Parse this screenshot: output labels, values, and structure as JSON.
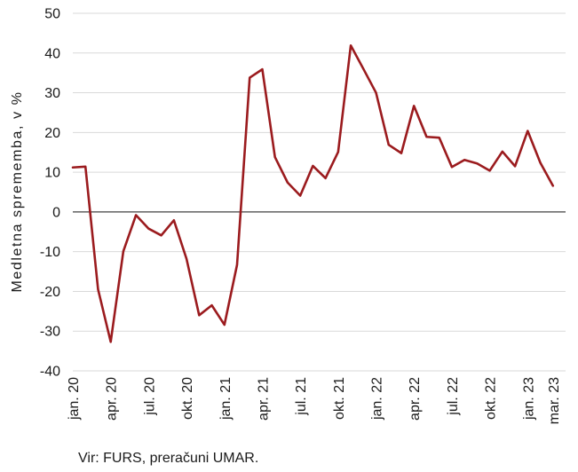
{
  "chart_data": {
    "type": "line",
    "ylabel": "Medletna sprememba, v %",
    "ylim": [
      -40,
      50
    ],
    "yticks": [
      -40,
      -30,
      -20,
      -10,
      0,
      10,
      20,
      30,
      40,
      50
    ],
    "xlim": [
      "2020-01",
      "2023-04"
    ],
    "xticks": [
      {
        "x": "2020-01",
        "label": "jan. 20"
      },
      {
        "x": "2020-04",
        "label": "apr. 20"
      },
      {
        "x": "2020-07",
        "label": "jul. 20"
      },
      {
        "x": "2020-10",
        "label": "okt. 20"
      },
      {
        "x": "2021-01",
        "label": "jan. 21"
      },
      {
        "x": "2021-04",
        "label": "apr. 21"
      },
      {
        "x": "2021-07",
        "label": "jul. 21"
      },
      {
        "x": "2021-10",
        "label": "okt. 21"
      },
      {
        "x": "2022-01",
        "label": "jan. 22"
      },
      {
        "x": "2022-04",
        "label": "apr. 22"
      },
      {
        "x": "2022-07",
        "label": "jul. 22"
      },
      {
        "x": "2022-10",
        "label": "okt. 22"
      },
      {
        "x": "2023-01",
        "label": "jan. 23"
      },
      {
        "x": "2023-03",
        "label": "mar. 23"
      }
    ],
    "grid": "horizontal",
    "grid_color": "#d9d9d9",
    "reference_line": 0,
    "reference_line_color": "#404040",
    "legend": "none",
    "x": [
      "2020-01",
      "2020-02",
      "2020-03",
      "2020-04",
      "2020-05",
      "2020-06",
      "2020-07",
      "2020-08",
      "2020-09",
      "2020-10",
      "2020-11",
      "2020-12",
      "2021-01",
      "2021-02",
      "2021-03",
      "2021-04",
      "2021-05",
      "2021-06",
      "2021-07",
      "2021-08",
      "2021-09",
      "2021-10",
      "2021-11",
      "2021-12",
      "2022-01",
      "2022-02",
      "2022-03",
      "2022-04",
      "2022-05",
      "2022-06",
      "2022-07",
      "2022-08",
      "2022-09",
      "2022-10",
      "2022-11",
      "2022-12",
      "2023-01",
      "2023-02",
      "2023-03"
    ],
    "series": [
      {
        "color": "#9b1b1e",
        "values": [
          11.2,
          11.4,
          -19.5,
          -32.7,
          -9.9,
          -0.8,
          -4.2,
          -5.9,
          -2.1,
          -11.8,
          -26.0,
          -23.5,
          -28.4,
          -13.3,
          33.8,
          35.9,
          13.8,
          7.4,
          4.1,
          11.6,
          8.5,
          15.1,
          41.9,
          36.0,
          30.0,
          16.9,
          14.8,
          26.7,
          18.9,
          18.7,
          11.3,
          13.1,
          12.2,
          10.4,
          15.2,
          11.5,
          20.4,
          12.4,
          6.6
        ]
      }
    ]
  },
  "source": "Vir: FURS, preračuni UMAR."
}
